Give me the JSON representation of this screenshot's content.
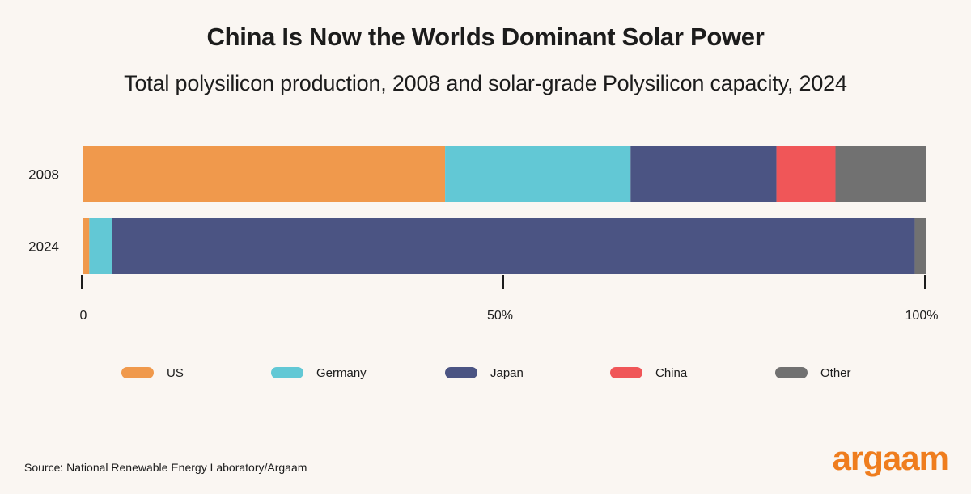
{
  "colors": {
    "US": "#f0994c",
    "Germany": "#62c8d5",
    "Japan": "#4b5483",
    "China": "#f05658",
    "Other": "#717171",
    "brand": "#ef7d1e"
  },
  "title": "China Is Now the Worlds Dominant Solar Power",
  "subtitle": "Total polysilicon production, 2008 and solar-grade Polysilicon capacity, 2024",
  "source": "Source: National Renewable Energy Laboratory/Argaam",
  "logo": "argaam",
  "chart_data": {
    "type": "bar",
    "orientation": "horizontal",
    "stacked": true,
    "normalized": true,
    "categories": [
      "2008",
      "2024"
    ],
    "series": [
      {
        "name": "US",
        "values": [
          43,
          0.8
        ]
      },
      {
        "name": "Germany",
        "values": [
          22,
          2.7
        ]
      },
      {
        "name": "Japan",
        "values": [
          17.3,
          95.2
        ]
      },
      {
        "name": "China",
        "values": [
          7,
          0
        ]
      },
      {
        "name": "Other",
        "values": [
          10.7,
          1.3
        ]
      }
    ],
    "x_ticks": [
      "0",
      "50%",
      "100%"
    ],
    "xlim": [
      0,
      100
    ],
    "legend_position": "bottom",
    "title": "China Is Now the Worlds Dominant Solar Power",
    "xlabel": "",
    "ylabel": ""
  },
  "legend": [
    {
      "label": "US",
      "color": "#f0994c"
    },
    {
      "label": "Germany",
      "color": "#62c8d5"
    },
    {
      "label": "Japan",
      "color": "#4b5483"
    },
    {
      "label": "China",
      "color": "#f05658"
    },
    {
      "label": "Other",
      "color": "#717171"
    }
  ]
}
